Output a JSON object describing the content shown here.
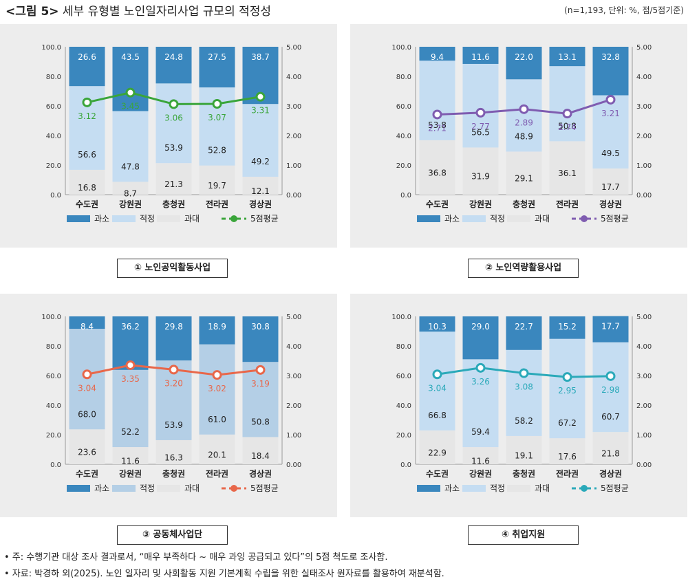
{
  "header": {
    "title_prefix": "<그림 5>",
    "title_text": "세부 유형별 노인일자리사업 규모의 적정성",
    "subtitle": "(n=1,193, 단위: %, 점/5점기준)"
  },
  "notes": [
    "• 주: 수행기관 대상 조사 결과로서, “매우 부족하다 ~ 매우 과잉 공급되고 있다”의 5점 척도로 조사함.",
    "• 자료: 박경하 외(2025). 노인 일자리 및 사회활동 지원 기본계획 수립을 위한 실태조사 원자료를 활용하여 재분석함."
  ],
  "colors": {
    "excess": "#3a87be",
    "proper": "#c5ddf2",
    "proper_alt": "#b4cfe6",
    "under": "#e6e6e6"
  },
  "chart_data": [
    {
      "type": "bar",
      "stacked": true,
      "caption": "① 노인공익활동사업",
      "categories": [
        "수도권",
        "강원권",
        "충청권",
        "전라권",
        "경상권"
      ],
      "series": [
        {
          "name": "과대",
          "values": [
            16.8,
            8.7,
            21.3,
            19.7,
            12.1
          ]
        },
        {
          "name": "적정",
          "values": [
            56.6,
            47.8,
            53.9,
            52.8,
            49.2
          ]
        },
        {
          "name": "과소",
          "values": [
            26.6,
            43.5,
            24.8,
            27.5,
            38.7
          ]
        }
      ],
      "line": {
        "name": "5점평균",
        "values": [
          3.12,
          3.45,
          3.06,
          3.07,
          3.31
        ],
        "color": "#3aa53a"
      },
      "ylim": [
        0,
        100
      ],
      "y2lim": [
        0,
        5
      ],
      "yticks": [
        "0.0",
        "20.0",
        "40.0",
        "60.0",
        "80.0",
        "100.0"
      ],
      "y2ticks": [
        "0.00",
        "1.00",
        "2.00",
        "3.00",
        "4.00",
        "5.00"
      ],
      "legend": [
        "과소",
        "적정",
        "과대",
        "5점평균"
      ],
      "legend_position": "bottom"
    },
    {
      "type": "bar",
      "stacked": true,
      "caption": "② 노인역량활용사업",
      "categories": [
        "수도권",
        "강원권",
        "충청권",
        "전라권",
        "경상권"
      ],
      "series": [
        {
          "name": "과대",
          "values": [
            36.8,
            31.9,
            29.1,
            36.1,
            17.7
          ]
        },
        {
          "name": "적정",
          "values": [
            53.8,
            56.5,
            48.9,
            50.8,
            49.5
          ]
        },
        {
          "name": "과소",
          "values": [
            9.4,
            11.6,
            22.0,
            13.1,
            32.8
          ]
        }
      ],
      "line": {
        "name": "5점평균",
        "values": [
          2.71,
          2.77,
          2.89,
          2.74,
          3.21
        ],
        "color": "#7f5cb0"
      },
      "ylim": [
        0,
        100
      ],
      "y2lim": [
        0,
        5
      ],
      "yticks": [
        "0.0",
        "20.0",
        "40.0",
        "60.0",
        "80.0",
        "100.0"
      ],
      "y2ticks": [
        "0.00",
        "1.00",
        "2.00",
        "3.00",
        "4.00",
        "5.00"
      ],
      "legend": [
        "과소",
        "적정",
        "과대",
        "5점평균"
      ],
      "legend_position": "bottom"
    },
    {
      "type": "bar",
      "stacked": true,
      "caption": "③ 공동체사업단",
      "categories": [
        "수도권",
        "강원권",
        "충청권",
        "전라권",
        "경상권"
      ],
      "series": [
        {
          "name": "과대",
          "values": [
            23.6,
            11.6,
            16.3,
            20.1,
            18.4
          ]
        },
        {
          "name": "적정",
          "values": [
            68.0,
            52.2,
            53.9,
            61.0,
            50.8
          ]
        },
        {
          "name": "과소",
          "values": [
            8.4,
            36.2,
            29.8,
            18.9,
            30.8
          ]
        }
      ],
      "line": {
        "name": "5점평균",
        "values": [
          3.04,
          3.35,
          3.2,
          3.02,
          3.19
        ],
        "color": "#e8674a"
      },
      "ylim": [
        0,
        100
      ],
      "y2lim": [
        0,
        5
      ],
      "yticks": [
        "0.0",
        "20.0",
        "40.0",
        "60.0",
        "80.0",
        "100.0"
      ],
      "y2ticks": [
        "0.00",
        "1.00",
        "2.00",
        "3.00",
        "4.00",
        "5.00"
      ],
      "legend": [
        "과소",
        "적정",
        "과대",
        "5점평균"
      ],
      "legend_position": "bottom"
    },
    {
      "type": "bar",
      "stacked": true,
      "caption": "④ 취업지원",
      "categories": [
        "수도권",
        "강원권",
        "충청권",
        "전라권",
        "경상권"
      ],
      "series": [
        {
          "name": "과대",
          "values": [
            22.9,
            11.6,
            19.1,
            17.6,
            21.8
          ]
        },
        {
          "name": "적정",
          "values": [
            66.8,
            59.4,
            58.2,
            67.2,
            60.7
          ]
        },
        {
          "name": "과소",
          "values": [
            10.3,
            29.0,
            22.7,
            15.2,
            17.7
          ]
        }
      ],
      "line": {
        "name": "5점평균",
        "values": [
          3.04,
          3.26,
          3.08,
          2.95,
          2.98
        ],
        "color": "#2aa9b9"
      },
      "ylim": [
        0,
        100
      ],
      "y2lim": [
        0,
        5
      ],
      "yticks": [
        "0.0",
        "20.0",
        "40.0",
        "60.0",
        "80.0",
        "100.0"
      ],
      "y2ticks": [
        "0.00",
        "1.00",
        "2.00",
        "3.00",
        "4.00",
        "5.00"
      ],
      "legend": [
        "과소",
        "적정",
        "과대",
        "5점평균"
      ],
      "legend_position": "bottom"
    }
  ]
}
